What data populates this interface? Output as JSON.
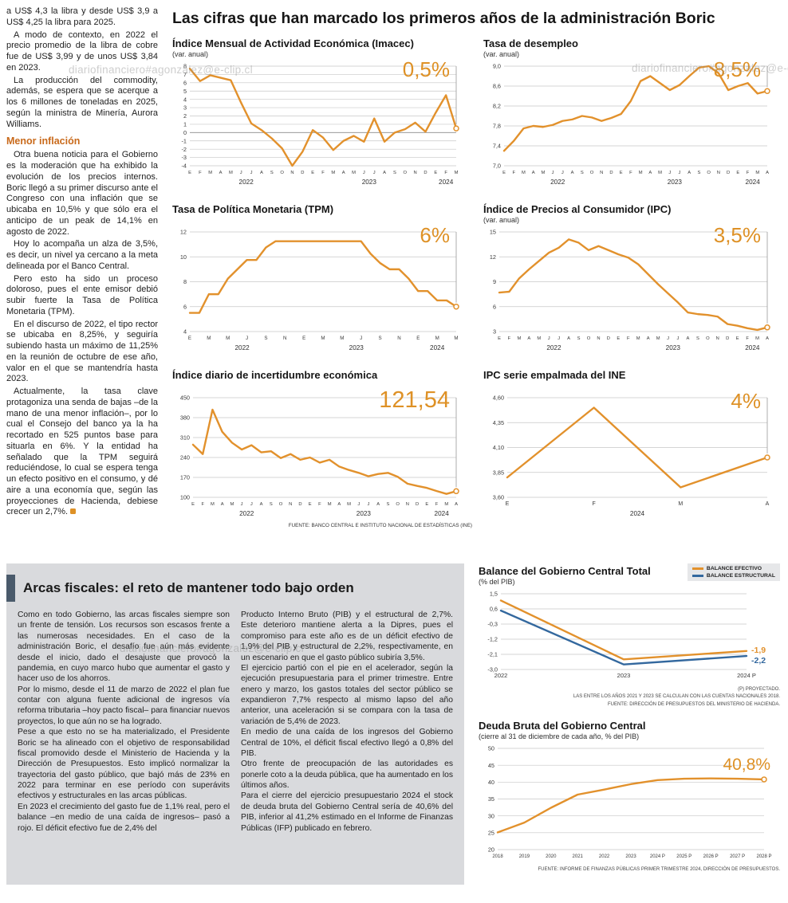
{
  "watermark": "diariofinanciero#agonzalez@e-clip.cl",
  "main_title": "Las cifras que han marcado los primeros años de la administración Boric",
  "colors": {
    "accent_orange": "#DE9126",
    "line_orange": "#E2912C",
    "line_blue": "#33689E",
    "subhead_orange": "#C96A1B",
    "box_bg": "#D9DADD",
    "title_bar": "#4A5A6B"
  },
  "left_column": {
    "paragraphs": [
      "a US$ 4,3 la libra y desde US$ 3,9 a US$ 4,25 la libra para 2025.",
      "A modo de contexto, en 2022 el precio promedio de la libra de cobre fue de US$ 3,99 y de unos US$ 3,84 en 2023.",
      "La producción del commodity, además, se espera que se acerque a los 6 millones de toneladas en 2025, según la ministra de Minería, Aurora Williams.",
      "Otra buena noticia para el Gobierno es la moderación que ha exhibido la evolución de los precios internos. Boric llegó a su primer discurso ante el Congreso con una inflación que se ubicaba en 10,5% y que sólo era el anticipo de un peak de 14,1% en agosto de 2022.",
      "Hoy lo acompaña un alza de 3,5%, es decir, un nivel ya cercano a la meta delineada por el Banco Central.",
      "Pero esto ha sido un proceso doloroso, pues el ente emisor debió subir fuerte la Tasa de Política Monetaria (TPM).",
      "En el discurso de 2022, el tipo rector se ubicaba en 8,25%, y seguiría subiendo hasta un máximo de 11,25% en la reunión de octubre de ese año, valor en el que se mantendría hasta 2023.",
      "Actualmente, la tasa clave protagoniza una senda de bajas –de la mano de una menor inflación–, por lo cual el Consejo del banco ya la ha recortado en 525 puntos base para situarla en 6%. Y la entidad ha señalado que la TPM seguirá reduciéndose, lo cual se espera tenga un efecto positivo en el consumo, y dé aire a una economía que, según las proyecciones de Hacienda, debiese crecer un 2,7%."
    ],
    "subhead": "Menor inflación"
  },
  "sources": {
    "top_charts": "FUENTE: BANCO CENTRAL E INSTITUTO NACIONAL DE ESTADÍSTICAS (INE)",
    "balance_note1": "(P) PROYECTADO.",
    "balance_note2": "LAS ENTRE LOS AÑOS 2021 Y 2023 SE CALCULAN CON LAS CUENTAS NACIONALES 2018.",
    "balance_note3": "FUENTE: DIRECCIÓN DE PRESUPUESTOS DEL MINISTERIO DE HACIENDA.",
    "deuda_note": "FUENTE: INFORME DE FINANZAS PÚBLICAS PRIMER TRIMESTRE 2024, DIRECCIÓN DE PRESUPUESTOS."
  },
  "fiscal_box": {
    "title": "Arcas fiscales: el reto de mantener todo bajo orden",
    "col1": [
      "Como en todo Gobierno, las arcas fiscales siempre son un frente de tensión. Los recursos son escasos frente a las numerosas necesidades. En el caso de la administración Boric, el desafío fue aún más evidente desde el inicio, dado el desajuste que provocó la pandemia, en cuyo marco hubo que aumentar el gasto y hacer uso de los ahorros.",
      "Por lo mismo, desde el 11 de marzo de 2022 el plan fue contar con alguna fuente adicional de ingresos vía reforma tributaria –hoy pacto fiscal– para financiar nuevos proyectos, lo que aún no se ha logrado.",
      "Pese a que esto no se ha materializado, el Presidente Boric se ha alineado con el objetivo de responsabilidad fiscal promovido desde el Ministerio de Hacienda y la Dirección de Presupuestos. Esto implicó normalizar la trayectoria del gasto público, que bajó más de 23% en 2022 para terminar en ese período con superávits efectivos y estructurales en las arcas públicas.",
      "En 2023 el crecimiento del gasto fue de 1,1% real, pero el balance –en medio de una caída de ingresos– pasó a rojo. El déficit efectivo fue de 2,4% del"
    ],
    "col2": [
      "Producto Interno Bruto (PIB) y el estructural de 2,7%. Este deterioro mantiene alerta a la Dipres, pues el compromiso para este año es de un déficit efectivo de 1,9% del PIB y estructural de 2,2%, respectivamente, en un escenario en que el gasto público subiría 3,5%.",
      "El ejercicio partió con el pie en el acelerador, según la ejecución presupuestaria para el primer trimestre. Entre enero y marzo, los gastos totales del sector público se expandieron 7,7% respecto al mismo lapso del año anterior, una aceleración si se compara con la tasa de variación de 5,4% de 2023.",
      "En medio de una caída de los ingresos del Gobierno Central de 10%, el déficit fiscal efectivo llegó a 0,8% del PIB.",
      "Otro frente de preocupación de las autoridades es ponerle coto a la deuda pública, que ha aumentado en los últimos años.",
      "Para el cierre del ejercicio presupuestario 2024 el stock de deuda bruta del Gobierno Central sería de 40,6% del PIB, inferior al 41,2% estimado en el Informe de Finanzas Públicas (IFP) publicado en febrero."
    ]
  },
  "chart_data": [
    {
      "type": "line",
      "title": "Índice Mensual de Actividad Económica (Imacec)",
      "subtitle": "(var. anual)",
      "highlight": "0,5%",
      "ylim": [
        -4,
        8
      ],
      "yticks": [
        8,
        7,
        6,
        5,
        4,
        3,
        2,
        1,
        0,
        -1,
        -2,
        -3,
        -4
      ],
      "x_labels": [
        "E",
        "F",
        "M",
        "A",
        "M",
        "J",
        "J",
        "A",
        "S",
        "O",
        "N",
        "D",
        "E",
        "F",
        "M",
        "A",
        "M",
        "J",
        "J",
        "A",
        "S",
        "O",
        "N",
        "D",
        "E",
        "F",
        "M"
      ],
      "x_label_size": 5.8,
      "years": [
        {
          "label": "2022",
          "start": 0,
          "end": 11
        },
        {
          "label": "2023",
          "start": 12,
          "end": 23
        },
        {
          "label": "2024",
          "start": 24,
          "end": 26
        }
      ],
      "series": [
        {
          "name": "Imacec",
          "color": "#E2912C",
          "end_marker": true,
          "values": [
            7.7,
            6.2,
            6.9,
            6.6,
            6.3,
            3.6,
            1.1,
            0.3,
            -0.7,
            -1.9,
            -4.0,
            -2.3,
            0.3,
            -0.6,
            -2.1,
            -1.0,
            -0.4,
            -1.1,
            1.7,
            -1.1,
            0.0,
            0.4,
            1.2,
            0.1,
            2.4,
            4.5,
            0.5
          ]
        }
      ],
      "pointer": true
    },
    {
      "type": "line",
      "title": "Tasa de desempleo",
      "subtitle": "(var. anual)",
      "highlight": "8,5%",
      "ylim": [
        7.0,
        9.0
      ],
      "yticks": [
        9.0,
        8.6,
        8.2,
        7.8,
        7.4,
        7.0
      ],
      "ytick_labels": [
        "9,0",
        "8,6",
        "8,2",
        "7,8",
        "7,4",
        "7,0"
      ],
      "x_labels": [
        "E",
        "F",
        "M",
        "A",
        "M",
        "J",
        "J",
        "A",
        "S",
        "O",
        "N",
        "D",
        "E",
        "F",
        "M",
        "A",
        "M",
        "J",
        "J",
        "A",
        "S",
        "O",
        "N",
        "D",
        "E",
        "F",
        "M",
        "A"
      ],
      "x_label_size": 5.8,
      "years": [
        {
          "label": "2022",
          "start": 0,
          "end": 11
        },
        {
          "label": "2023",
          "start": 12,
          "end": 23
        },
        {
          "label": "2024",
          "start": 24,
          "end": 27
        }
      ],
      "series": [
        {
          "name": "Tasa de desempleo",
          "color": "#E2912C",
          "end_marker": true,
          "values": [
            7.3,
            7.5,
            7.75,
            7.8,
            7.78,
            7.82,
            7.9,
            7.93,
            8.0,
            7.97,
            7.9,
            7.96,
            8.04,
            8.3,
            8.7,
            8.8,
            8.66,
            8.52,
            8.62,
            8.8,
            8.97,
            9.0,
            8.86,
            8.52,
            8.6,
            8.66,
            8.45,
            8.5
          ]
        }
      ],
      "pointer": true
    },
    {
      "type": "line",
      "title": "Tasa de Política Monetaria (TPM)",
      "subtitle": "",
      "highlight": "6%",
      "ylim": [
        4,
        12
      ],
      "yticks": [
        12,
        10,
        8,
        6,
        4
      ],
      "x_labels": [
        "E",
        "",
        "M",
        "",
        "M",
        "",
        "J",
        "",
        "S",
        "",
        "N",
        "",
        "E",
        "",
        "M",
        "",
        "M",
        "",
        "J",
        "",
        "S",
        "",
        "N",
        "",
        "E",
        "",
        "M",
        "",
        "M"
      ],
      "x_label_size": 6.2,
      "years": [
        {
          "label": "2022",
          "start": 0,
          "end": 11
        },
        {
          "label": "2023",
          "start": 12,
          "end": 23
        },
        {
          "label": "2024",
          "start": 24,
          "end": 28
        }
      ],
      "series": [
        {
          "name": "TPM",
          "color": "#E2912C",
          "end_marker": true,
          "values": [
            5.5,
            5.5,
            7.0,
            7.0,
            8.25,
            9.0,
            9.75,
            9.75,
            10.75,
            11.25,
            11.25,
            11.25,
            11.25,
            11.25,
            11.25,
            11.25,
            11.25,
            11.25,
            11.25,
            10.25,
            9.5,
            9.0,
            9.0,
            8.25,
            7.25,
            7.25,
            6.5,
            6.5,
            6.0
          ]
        }
      ],
      "pointer": true
    },
    {
      "type": "line",
      "title": "Índice de Precios al Consumidor (IPC)",
      "subtitle": "(var. anual)",
      "highlight": "3,5%",
      "ylim": [
        3,
        15
      ],
      "yticks": [
        15,
        12,
        9,
        6,
        3
      ],
      "x_labels": [
        "E",
        "F",
        "M",
        "A",
        "M",
        "J",
        "J",
        "A",
        "S",
        "O",
        "N",
        "D",
        "E",
        "F",
        "M",
        "A",
        "M",
        "J",
        "J",
        "A",
        "S",
        "O",
        "N",
        "D",
        "E",
        "F",
        "M",
        "A"
      ],
      "x_label_size": 5.8,
      "years": [
        {
          "label": "2022",
          "start": 0,
          "end": 11
        },
        {
          "label": "2023",
          "start": 12,
          "end": 23
        },
        {
          "label": "2024",
          "start": 24,
          "end": 27
        }
      ],
      "series": [
        {
          "name": "IPC",
          "color": "#E2912C",
          "end_marker": true,
          "values": [
            7.7,
            7.8,
            9.4,
            10.5,
            11.5,
            12.5,
            13.1,
            14.1,
            13.7,
            12.8,
            13.3,
            12.8,
            12.3,
            11.9,
            11.1,
            9.9,
            8.7,
            7.6,
            6.5,
            5.3,
            5.1,
            5.0,
            4.8,
            3.9,
            3.7,
            3.4,
            3.2,
            3.5
          ]
        }
      ],
      "pointer": true
    },
    {
      "type": "line",
      "title": "Índice diario de incertidumbre económica",
      "subtitle": "",
      "highlight": "121,54",
      "ylim": [
        100,
        450
      ],
      "yticks": [
        450,
        380,
        310,
        240,
        170,
        100
      ],
      "x_labels": [
        "E",
        "F",
        "M",
        "A",
        "M",
        "J",
        "J",
        "A",
        "S",
        "O",
        "N",
        "D",
        "E",
        "F",
        "M",
        "A",
        "M",
        "J",
        "J",
        "A",
        "S",
        "O",
        "N",
        "D",
        "E",
        "F",
        "M",
        "A"
      ],
      "x_label_size": 5.8,
      "years": [
        {
          "label": "2022",
          "start": 0,
          "end": 11
        },
        {
          "label": "2023",
          "start": 12,
          "end": 23
        },
        {
          "label": "2024",
          "start": 24,
          "end": 27
        }
      ],
      "series": [
        {
          "name": "Incertidumbre económica",
          "color": "#E2912C",
          "end_marker": true,
          "values": [
            285,
            252,
            408,
            330,
            292,
            268,
            283,
            258,
            262,
            238,
            252,
            232,
            240,
            222,
            232,
            208,
            196,
            186,
            174,
            182,
            186,
            172,
            148,
            140,
            133,
            122,
            112,
            121.54
          ]
        }
      ],
      "pointer": true
    },
    {
      "type": "line",
      "title": "IPC serie empalmada del INE",
      "subtitle": "",
      "highlight": "4%",
      "ylim": [
        3.6,
        4.6
      ],
      "yticks": [
        4.6,
        4.35,
        4.1,
        3.85,
        3.6
      ],
      "ytick_labels": [
        "4,60",
        "4,35",
        "4,10",
        "3,85",
        "3,60"
      ],
      "x_labels": [
        "E",
        "F",
        "M",
        "A"
      ],
      "x_label_size": 7,
      "years": [
        {
          "label": "2024",
          "start": 0,
          "end": 3
        }
      ],
      "series": [
        {
          "name": "IPC serie empalmada",
          "color": "#E2912C",
          "end_marker": true,
          "values": [
            3.8,
            4.5,
            3.7,
            4.0
          ]
        }
      ],
      "pointer": true
    },
    {
      "type": "line",
      "title": "Balance del Gobierno Central Total",
      "subtitle": "(% del PIB)",
      "ylim": [
        -3.0,
        1.5
      ],
      "yticks": [
        1.5,
        0.6,
        -0.3,
        -1.2,
        -2.1,
        -3.0
      ],
      "ytick_labels": [
        "1,5",
        "0,6",
        "-0,3",
        "-1,2",
        "-2,1",
        "-3,0"
      ],
      "x_labels": [
        "2022",
        "2023",
        "2024 P"
      ],
      "x_label_size": 7.5,
      "series": [
        {
          "name": "BALANCE EFECTIVO",
          "color": "#E2912C",
          "end_label": "-1,9",
          "label_dy": -1,
          "values": [
            1.1,
            -2.4,
            -1.9
          ]
        },
        {
          "name": "BALANCE ESTRUCTURAL",
          "color": "#33689E",
          "end_label": "-2,2",
          "label_dy": 6,
          "values": [
            0.5,
            -2.7,
            -2.2
          ]
        }
      ],
      "pointer": false
    },
    {
      "type": "line",
      "title": "Deuda Bruta del Gobierno Central",
      "subtitle": "(cierre al 31 de diciembre de cada año, % del PIB)",
      "highlight": "40,8%",
      "ylim": [
        20,
        50
      ],
      "yticks": [
        50,
        45,
        40,
        35,
        30,
        25,
        20
      ],
      "x_labels": [
        "2018",
        "2019",
        "2020",
        "2021",
        "2022",
        "2023",
        "2024 P",
        "2025 P",
        "2026 P",
        "2027 P",
        "2028 P"
      ],
      "x_label_size": 6,
      "series": [
        {
          "name": "Deuda bruta",
          "color": "#E2912C",
          "end_marker": true,
          "values": [
            25.1,
            28.0,
            32.4,
            36.3,
            37.8,
            39.4,
            40.6,
            41.0,
            41.1,
            41.0,
            40.8
          ]
        }
      ],
      "pointer": false
    }
  ]
}
